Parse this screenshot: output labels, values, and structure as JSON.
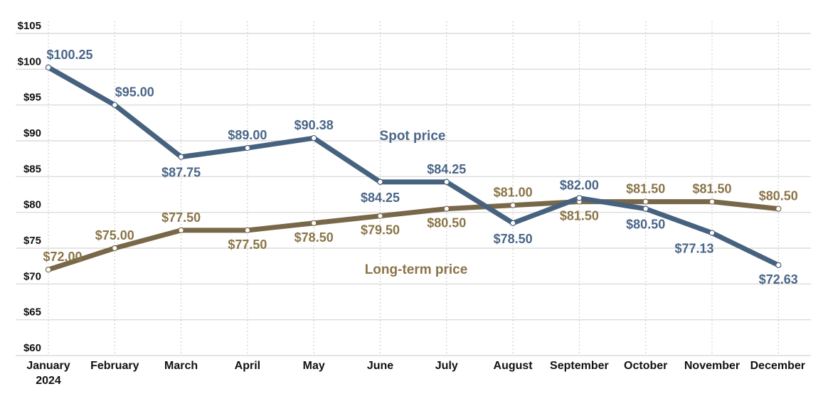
{
  "chart_data": {
    "type": "line",
    "title": "",
    "xlabel": "",
    "ylabel": "",
    "categories": [
      "January",
      "February",
      "March",
      "April",
      "May",
      "June",
      "July",
      "August",
      "September",
      "October",
      "November",
      "December"
    ],
    "first_category_sublabel": "2024",
    "ylim": [
      60,
      105
    ],
    "yticks": [
      60,
      65,
      70,
      75,
      80,
      85,
      90,
      95,
      100,
      105
    ],
    "ytick_labels": [
      "$60",
      "$65",
      "$70",
      "$75",
      "$80",
      "$85",
      "$90",
      "$95",
      "$100",
      "$105"
    ],
    "grid": true,
    "series": [
      {
        "name": "Spot price",
        "color": "#47627f",
        "label_color": "#4a6688",
        "values": [
          100.25,
          95.0,
          87.75,
          89.0,
          90.38,
          84.25,
          84.25,
          78.5,
          82.0,
          80.5,
          77.13,
          72.63
        ],
        "data_labels": [
          "$100.25",
          "$95.00",
          "$87.75",
          "$89.00",
          "$90.38",
          "$84.25",
          "$84.25",
          "$78.50",
          "$82.00",
          "$80.50",
          "$77.13",
          "$72.63"
        ]
      },
      {
        "name": "Long-term price",
        "color": "#786849",
        "label_color": "#8a7548",
        "values": [
          72.0,
          75.0,
          77.5,
          77.5,
          78.5,
          79.5,
          80.5,
          81.0,
          81.5,
          81.5,
          81.5,
          80.5
        ],
        "data_labels": [
          "$72.00",
          "$75.00",
          "$77.50",
          "$77.50",
          "$78.50",
          "$79.50",
          "$80.50",
          "$81.00",
          "$81.50",
          "$81.50",
          "$81.50",
          "$80.50"
        ]
      }
    ]
  }
}
